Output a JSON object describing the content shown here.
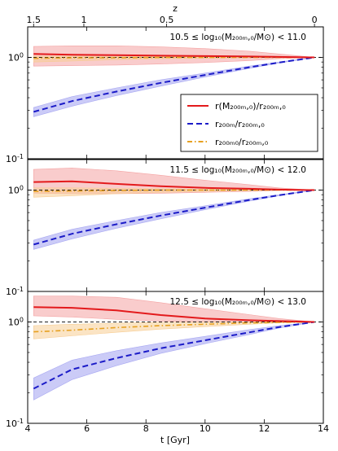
{
  "chart_data": {
    "type": "line",
    "shared": {
      "xlabel": "t [Gyr]",
      "xlim": [
        4,
        14
      ],
      "x_ticks": [
        "4",
        "6",
        "8",
        "10",
        "12",
        "14"
      ],
      "top_axis_label": "z",
      "top_ticks": [
        {
          "label": "1.5",
          "t": 4.2
        },
        {
          "label": "1",
          "t": 5.9
        },
        {
          "label": "0.5",
          "t": 8.7
        },
        {
          "label": "0",
          "t": 13.7
        }
      ],
      "yscale": "log",
      "ylim": [
        0.1,
        2.0
      ],
      "y_tick_labels": {
        "major_low": "10⁻¹",
        "major_high": "10⁰"
      },
      "reference_line_y": 1.0
    },
    "legend": {
      "placement": "right, in top panel",
      "entries": [
        {
          "key": "rM",
          "label": "r(M₂₀₀ₘ,₀)/r₂₀₀ₘ,₀",
          "color": "#e31a1c",
          "dash": "solid"
        },
        {
          "key": "r200m",
          "label": "r₂₀₀ₘ/r₂₀₀ₘ,₀",
          "color": "#1c1cc8",
          "dash": "dashed"
        },
        {
          "key": "r200m0",
          "label": "r₂₀₀ₘ₀/r₂₀₀ₘ,₀",
          "color": "#e6a020",
          "dash": "dashdot"
        }
      ]
    },
    "panels": [
      {
        "title": "10.5 ≤ log₁₀(M₂₀₀ₘ,₀/M⊙) < 11.0",
        "series": [
          {
            "key": "rM",
            "x": [
              4.2,
              5.5,
              7,
              8.5,
              10,
              11.5,
              12.5,
              13.7
            ],
            "y": [
              1.08,
              1.06,
              1.05,
              1.04,
              1.03,
              1.02,
              1.01,
              1.0
            ],
            "lo": [
              0.82,
              0.83,
              0.84,
              0.86,
              0.89,
              0.93,
              0.97,
              1.0
            ],
            "hi": [
              1.28,
              1.3,
              1.3,
              1.27,
              1.22,
              1.15,
              1.08,
              1.0
            ]
          },
          {
            "key": "r200m",
            "x": [
              4.2,
              5.5,
              7,
              8.5,
              10,
              11.5,
              12.5,
              13.7
            ],
            "y": [
              0.29,
              0.37,
              0.46,
              0.56,
              0.67,
              0.8,
              0.89,
              1.0
            ],
            "lo": [
              0.26,
              0.33,
              0.42,
              0.52,
              0.64,
              0.78,
              0.88,
              1.0
            ],
            "hi": [
              0.32,
              0.41,
              0.5,
              0.6,
              0.7,
              0.82,
              0.9,
              1.0
            ]
          },
          {
            "key": "r200m0",
            "x": [
              4.2,
              5.5,
              7,
              8.5,
              10,
              11.5,
              12.5,
              13.7
            ],
            "y": [
              0.98,
              0.99,
              0.99,
              1.0,
              1.0,
              1.0,
              1.0,
              1.0
            ],
            "lo": [
              0.9,
              0.92,
              0.95,
              0.97,
              0.98,
              0.99,
              1.0,
              1.0
            ],
            "hi": [
              1.03,
              1.03,
              1.02,
              1.02,
              1.01,
              1.01,
              1.0,
              1.0
            ]
          }
        ]
      },
      {
        "title": "11.5 ≤ log₁₀(M₂₀₀ₘ,₀/M⊙) < 12.0",
        "series": [
          {
            "key": "rM",
            "x": [
              4.2,
              5.5,
              7,
              8.5,
              10,
              11.5,
              12.5,
              13.7
            ],
            "y": [
              1.2,
              1.22,
              1.15,
              1.09,
              1.05,
              1.03,
              1.01,
              1.0
            ],
            "lo": [
              0.93,
              0.92,
              0.92,
              0.93,
              0.95,
              0.97,
              0.99,
              1.0
            ],
            "hi": [
              1.6,
              1.65,
              1.55,
              1.4,
              1.25,
              1.13,
              1.05,
              1.0
            ]
          },
          {
            "key": "r200m",
            "x": [
              4.2,
              5.5,
              7,
              8.5,
              10,
              11.5,
              12.5,
              13.7
            ],
            "y": [
              0.29,
              0.37,
              0.46,
              0.56,
              0.67,
              0.8,
              0.89,
              1.0
            ],
            "lo": [
              0.26,
              0.33,
              0.42,
              0.52,
              0.64,
              0.78,
              0.88,
              1.0
            ],
            "hi": [
              0.32,
              0.41,
              0.5,
              0.6,
              0.7,
              0.82,
              0.9,
              1.0
            ]
          },
          {
            "key": "r200m0",
            "x": [
              4.2,
              5.5,
              7,
              8.5,
              10,
              11.5,
              12.5,
              13.7
            ],
            "y": [
              0.97,
              0.98,
              0.99,
              1.0,
              1.0,
              1.0,
              1.0,
              1.0
            ],
            "lo": [
              0.85,
              0.88,
              0.92,
              0.95,
              0.97,
              0.99,
              1.0,
              1.0
            ],
            "hi": [
              1.05,
              1.05,
              1.04,
              1.03,
              1.02,
              1.01,
              1.0,
              1.0
            ]
          }
        ]
      },
      {
        "title": "12.5 ≤ log₁₀(M₂₀₀ₘ,₀/M⊙) < 13.0",
        "series": [
          {
            "key": "rM",
            "x": [
              4.2,
              5.5,
              7,
              8.5,
              10,
              11.5,
              12.5,
              13.7
            ],
            "y": [
              1.4,
              1.38,
              1.3,
              1.17,
              1.08,
              1.04,
              1.02,
              1.0
            ],
            "lo": [
              1.15,
              1.12,
              1.06,
              1.02,
              1.0,
              0.99,
              0.99,
              1.0
            ],
            "hi": [
              1.8,
              1.8,
              1.75,
              1.55,
              1.35,
              1.18,
              1.08,
              1.0
            ]
          },
          {
            "key": "r200m",
            "x": [
              4.2,
              5.5,
              7,
              8.5,
              10,
              11.5,
              12.5,
              13.7
            ],
            "y": [
              0.22,
              0.34,
              0.44,
              0.55,
              0.66,
              0.79,
              0.89,
              1.0
            ],
            "lo": [
              0.17,
              0.27,
              0.37,
              0.49,
              0.61,
              0.75,
              0.87,
              1.0
            ],
            "hi": [
              0.28,
              0.42,
              0.52,
              0.62,
              0.72,
              0.84,
              0.92,
              1.0
            ]
          },
          {
            "key": "r200m0",
            "x": [
              4.2,
              5.5,
              7,
              8.5,
              10,
              11.5,
              12.5,
              13.7
            ],
            "y": [
              0.8,
              0.83,
              0.88,
              0.92,
              0.95,
              0.98,
              0.99,
              1.0
            ],
            "lo": [
              0.68,
              0.73,
              0.79,
              0.85,
              0.9,
              0.95,
              0.98,
              1.0
            ],
            "hi": [
              0.92,
              0.95,
              0.97,
              0.99,
              1.0,
              1.0,
              1.0,
              1.0
            ]
          }
        ]
      }
    ]
  }
}
